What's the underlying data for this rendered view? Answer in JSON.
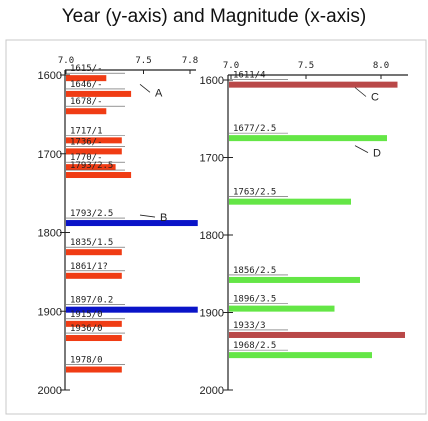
{
  "title": "Year (y-axis) and Magnitude (x-axis)",
  "colors": {
    "red": "#f03c14",
    "blue": "#0a14c8",
    "green": "#64e646",
    "brown": "#b94848",
    "ink": "#222222"
  },
  "chart_data": [
    {
      "type": "bar",
      "orientation": "horizontal",
      "x_ticks": [
        "7.0",
        "7.5",
        "7.8"
      ],
      "x_tick_values": [
        7.0,
        7.5,
        7.8
      ],
      "y_ticks": [
        "1600",
        "1700",
        "1800",
        "1900",
        "2000"
      ],
      "y_tick_values": [
        1600,
        1700,
        1800,
        1900,
        2000
      ],
      "ylim": [
        1600,
        2000
      ],
      "annotations": [
        {
          "text": "A",
          "year": 1622
        },
        {
          "text": "B",
          "year": 1788
        }
      ],
      "bars": [
        {
          "year": 1604,
          "magnitude": 7.26,
          "label": "1615/-",
          "color": "red"
        },
        {
          "year": 1624,
          "magnitude": 7.42,
          "label": "1646/-",
          "color": "red"
        },
        {
          "year": 1646,
          "magnitude": 7.26,
          "label": "1678/-",
          "color": "red"
        },
        {
          "year": 1683,
          "magnitude": 7.36,
          "label": "1717/1",
          "color": "red"
        },
        {
          "year": 1697,
          "magnitude": 7.36,
          "label": "1736/-",
          "color": "red"
        },
        {
          "year": 1717,
          "magnitude": 7.32,
          "label": "1770/-",
          "color": "red"
        },
        {
          "year": 1727,
          "magnitude": 7.42,
          "label": "1793/2.5",
          "color": "red"
        },
        {
          "year": 1788,
          "magnitude": 7.85,
          "label": "1793/2.5",
          "color": "blue"
        },
        {
          "year": 1825,
          "magnitude": 7.36,
          "label": "1835/1.5",
          "color": "red"
        },
        {
          "year": 1855,
          "magnitude": 7.36,
          "label": "1861/1?",
          "color": "red"
        },
        {
          "year": 1898,
          "magnitude": 7.85,
          "label": "1897/0.2",
          "color": "blue"
        },
        {
          "year": 1916,
          "magnitude": 7.36,
          "label": "1915/0",
          "color": "red"
        },
        {
          "year": 1934,
          "magnitude": 7.36,
          "label": "1936/0",
          "color": "red"
        },
        {
          "year": 1974,
          "magnitude": 7.36,
          "label": "1978/0",
          "color": "red"
        }
      ]
    },
    {
      "type": "bar",
      "orientation": "horizontal",
      "x_ticks": [
        "7.0",
        "7.5",
        "8.0"
      ],
      "x_tick_values": [
        7.0,
        7.5,
        8.0
      ],
      "y_ticks": [
        "1600",
        "1700",
        "1800",
        "1900",
        "2000"
      ],
      "y_tick_values": [
        1600,
        1700,
        1800,
        1900,
        2000
      ],
      "ylim": [
        1600,
        2000
      ],
      "annotations": [
        {
          "text": "C",
          "year": 1620
        },
        {
          "text": "D",
          "year": 1695
        }
      ],
      "bars": [
        {
          "year": 1606,
          "magnitude": 8.11,
          "label": "1611/4",
          "color": "brown"
        },
        {
          "year": 1675,
          "magnitude": 8.04,
          "label": "1677/2.5",
          "color": "green"
        },
        {
          "year": 1757,
          "magnitude": 7.8,
          "label": "1763/2.5",
          "color": "green"
        },
        {
          "year": 1858,
          "magnitude": 7.86,
          "label": "1856/2.5",
          "color": "green"
        },
        {
          "year": 1895,
          "magnitude": 7.69,
          "label": "1896/3.5",
          "color": "green"
        },
        {
          "year": 1929,
          "magnitude": 8.16,
          "label": "1933/3",
          "color": "brown"
        },
        {
          "year": 1955,
          "magnitude": 7.94,
          "label": "1968/2.5",
          "color": "green"
        }
      ]
    }
  ]
}
